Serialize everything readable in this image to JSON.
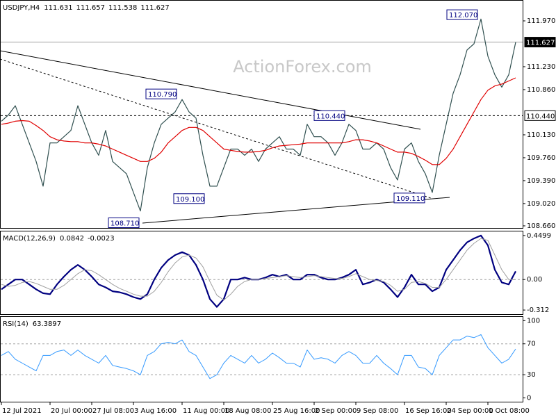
{
  "chart_data": [
    {
      "type": "line",
      "title": "USDJPY,H4",
      "ohlc": [
        111.631,
        111.657,
        111.538,
        111.627
      ],
      "watermark": "ActionForex.com",
      "ylim": [
        108.626,
        112.307
      ],
      "yticks": [
        {
          "value": 111.97,
          "label": "111.970"
        },
        {
          "value": 111.23,
          "label": "111.230"
        },
        {
          "value": 110.86,
          "label": "110.860"
        },
        {
          "value": 110.13,
          "label": "110.130"
        },
        {
          "value": 109.76,
          "label": "109.760"
        },
        {
          "value": 109.39,
          "label": "109.390"
        },
        {
          "value": 109.02,
          "label": "109.020"
        },
        {
          "value": 108.66,
          "label": "108.660"
        }
      ],
      "levels": [
        {
          "value": 111.627,
          "label": "111.627",
          "style": "solid"
        },
        {
          "value": 110.44,
          "label": "110.440",
          "style": "dashed"
        }
      ],
      "annotations": [
        {
          "value": 112.07,
          "label": "112.070"
        },
        {
          "value": 110.79,
          "label": "110.790"
        },
        {
          "value": 110.44,
          "label": "110.440"
        },
        {
          "value": 109.1,
          "label": "109.100"
        },
        {
          "value": 109.11,
          "label": "109.110"
        },
        {
          "value": 108.71,
          "label": "108.710"
        }
      ],
      "series": [
        {
          "color": "#2f4f4f",
          "width": 1.2,
          "values": [
            110.35,
            110.45,
            110.6,
            110.3,
            110.0,
            109.7,
            109.3,
            110.0,
            110.0,
            110.1,
            110.2,
            110.6,
            110.3,
            110.0,
            109.8,
            110.2,
            109.7,
            109.6,
            109.5,
            109.2,
            108.9,
            109.6,
            110.0,
            110.3,
            110.4,
            110.5,
            110.7,
            110.5,
            110.4,
            109.8,
            109.3,
            109.3,
            109.6,
            109.9,
            109.9,
            109.8,
            109.9,
            109.7,
            109.9,
            110.0,
            110.1,
            109.9,
            109.9,
            109.8,
            110.3,
            110.1,
            110.1,
            110.0,
            109.8,
            110.0,
            110.3,
            110.2,
            109.9,
            109.9,
            110.0,
            109.9,
            109.6,
            109.4,
            109.9,
            110.0,
            109.7,
            109.5,
            109.2,
            109.8,
            110.3,
            110.8,
            111.1,
            111.5,
            111.6,
            112.0,
            111.4,
            111.1,
            110.9,
            111.1,
            111.627
          ]
        },
        {
          "color": "#e00000",
          "width": 1.2,
          "values": [
            110.3,
            110.32,
            110.35,
            110.36,
            110.35,
            110.28,
            110.2,
            110.1,
            110.05,
            110.03,
            110.02,
            110.02,
            110.0,
            110.0,
            109.98,
            109.95,
            109.9,
            109.85,
            109.8,
            109.75,
            109.7,
            109.7,
            109.75,
            109.85,
            110.0,
            110.1,
            110.2,
            110.25,
            110.25,
            110.2,
            110.1,
            110.0,
            109.9,
            109.88,
            109.86,
            109.85,
            109.85,
            109.86,
            109.88,
            109.92,
            109.95,
            109.96,
            109.97,
            109.98,
            110.0,
            110.0,
            110.0,
            110.0,
            110.0,
            110.0,
            110.02,
            110.05,
            110.05,
            110.03,
            110.0,
            109.95,
            109.9,
            109.85,
            109.85,
            109.83,
            109.78,
            109.72,
            109.65,
            109.65,
            109.75,
            109.9,
            110.1,
            110.3,
            110.5,
            110.7,
            110.85,
            110.92,
            110.95,
            111.0,
            111.05
          ]
        }
      ]
    },
    {
      "type": "line",
      "title": "MACD(12,26,9)",
      "ylim": [
        -0.354,
        0.499
      ],
      "yticks": [
        0.4499,
        {
          "value": 0,
          "label": "0.00"
        },
        -0.312
      ],
      "levels": [
        0
      ],
      "series": [
        {
          "color": "#000080",
          "width": 2.2,
          "values": [
            -0.1,
            -0.05,
            0.0,
            0.0,
            -0.05,
            -0.1,
            -0.14,
            -0.15,
            -0.05,
            0.03,
            0.1,
            0.15,
            0.1,
            0.03,
            -0.05,
            -0.08,
            -0.12,
            -0.13,
            -0.15,
            -0.18,
            -0.2,
            -0.15,
            0.0,
            0.12,
            0.2,
            0.25,
            0.28,
            0.25,
            0.15,
            0.0,
            -0.2,
            -0.28,
            -0.2,
            0.0,
            0.0,
            0.02,
            0.0,
            0.0,
            0.02,
            0.05,
            0.03,
            0.05,
            0.0,
            0.0,
            0.05,
            0.05,
            0.02,
            0.0,
            0.0,
            0.02,
            0.05,
            0.1,
            -0.05,
            -0.03,
            0.0,
            -0.03,
            -0.1,
            -0.18,
            -0.08,
            0.05,
            -0.05,
            -0.05,
            -0.12,
            -0.08,
            0.1,
            0.2,
            0.3,
            0.38,
            0.42,
            0.45,
            0.35,
            0.1,
            -0.03,
            -0.05,
            0.0842
          ]
        },
        {
          "color": "#a0a0a0",
          "width": 1,
          "values": [
            -0.05,
            -0.07,
            -0.06,
            -0.03,
            -0.02,
            -0.04,
            -0.07,
            -0.1,
            -0.1,
            -0.06,
            0.0,
            0.06,
            0.1,
            0.09,
            0.05,
            0.0,
            -0.05,
            -0.09,
            -0.12,
            -0.15,
            -0.17,
            -0.17,
            -0.12,
            -0.03,
            0.08,
            0.17,
            0.23,
            0.25,
            0.22,
            0.13,
            -0.02,
            -0.16,
            -0.21,
            -0.15,
            -0.07,
            -0.02,
            0.0,
            0.0,
            0.01,
            0.02,
            0.03,
            0.04,
            0.03,
            0.02,
            0.03,
            0.04,
            0.03,
            0.02,
            0.01,
            0.01,
            0.03,
            0.06,
            0.03,
            0.0,
            -0.01,
            -0.02,
            -0.06,
            -0.12,
            -0.1,
            -0.03,
            -0.02,
            -0.04,
            -0.08,
            -0.08,
            0.0,
            0.1,
            0.2,
            0.3,
            0.37,
            0.42,
            0.4,
            0.25,
            0.1,
            0.0,
            -0.0023
          ]
        }
      ]
    },
    {
      "type": "line",
      "title": "RSI(14)",
      "ylim": [
        -4.9,
        105.7
      ],
      "yticks": [
        100,
        70,
        30,
        0
      ],
      "levels": [
        70,
        30
      ],
      "categories": [
        "12 Jul 2021",
        null,
        null,
        null,
        null,
        null,
        null,
        "20 Jul 00:00",
        null,
        null,
        null,
        null,
        null,
        "27 Jul 08:00",
        null,
        null,
        null,
        null,
        null,
        "3 Aug 16:00",
        null,
        null,
        null,
        null,
        null,
        null,
        "11 Aug 00:00",
        null,
        null,
        null,
        null,
        null,
        "18 Aug 08:00",
        null,
        null,
        null,
        null,
        null,
        null,
        "25 Aug 16:00",
        null,
        null,
        null,
        null,
        null,
        "2 Sep 00:00",
        null,
        null,
        null,
        null,
        null,
        "9 Sep 08:00",
        null,
        null,
        null,
        null,
        null,
        null,
        "16 Sep 16:00",
        null,
        null,
        null,
        null,
        null,
        "24 Sep 00:00",
        null,
        null,
        null,
        null,
        null,
        "1 Oct 08:00",
        null,
        null,
        null,
        null
      ],
      "series": [
        {
          "color": "#3399ff",
          "width": 1,
          "values": [
            55,
            60,
            50,
            45,
            40,
            35,
            55,
            55,
            60,
            62,
            55,
            62,
            55,
            50,
            45,
            55,
            42,
            40,
            38,
            35,
            30,
            55,
            60,
            70,
            72,
            70,
            75,
            60,
            55,
            40,
            25,
            30,
            45,
            55,
            50,
            45,
            55,
            45,
            50,
            58,
            52,
            45,
            45,
            40,
            62,
            50,
            52,
            50,
            45,
            55,
            60,
            55,
            45,
            45,
            55,
            45,
            38,
            30,
            55,
            55,
            40,
            38,
            30,
            55,
            65,
            75,
            75,
            80,
            78,
            82,
            65,
            55,
            45,
            50,
            63.3897
          ]
        }
      ]
    }
  ]
}
